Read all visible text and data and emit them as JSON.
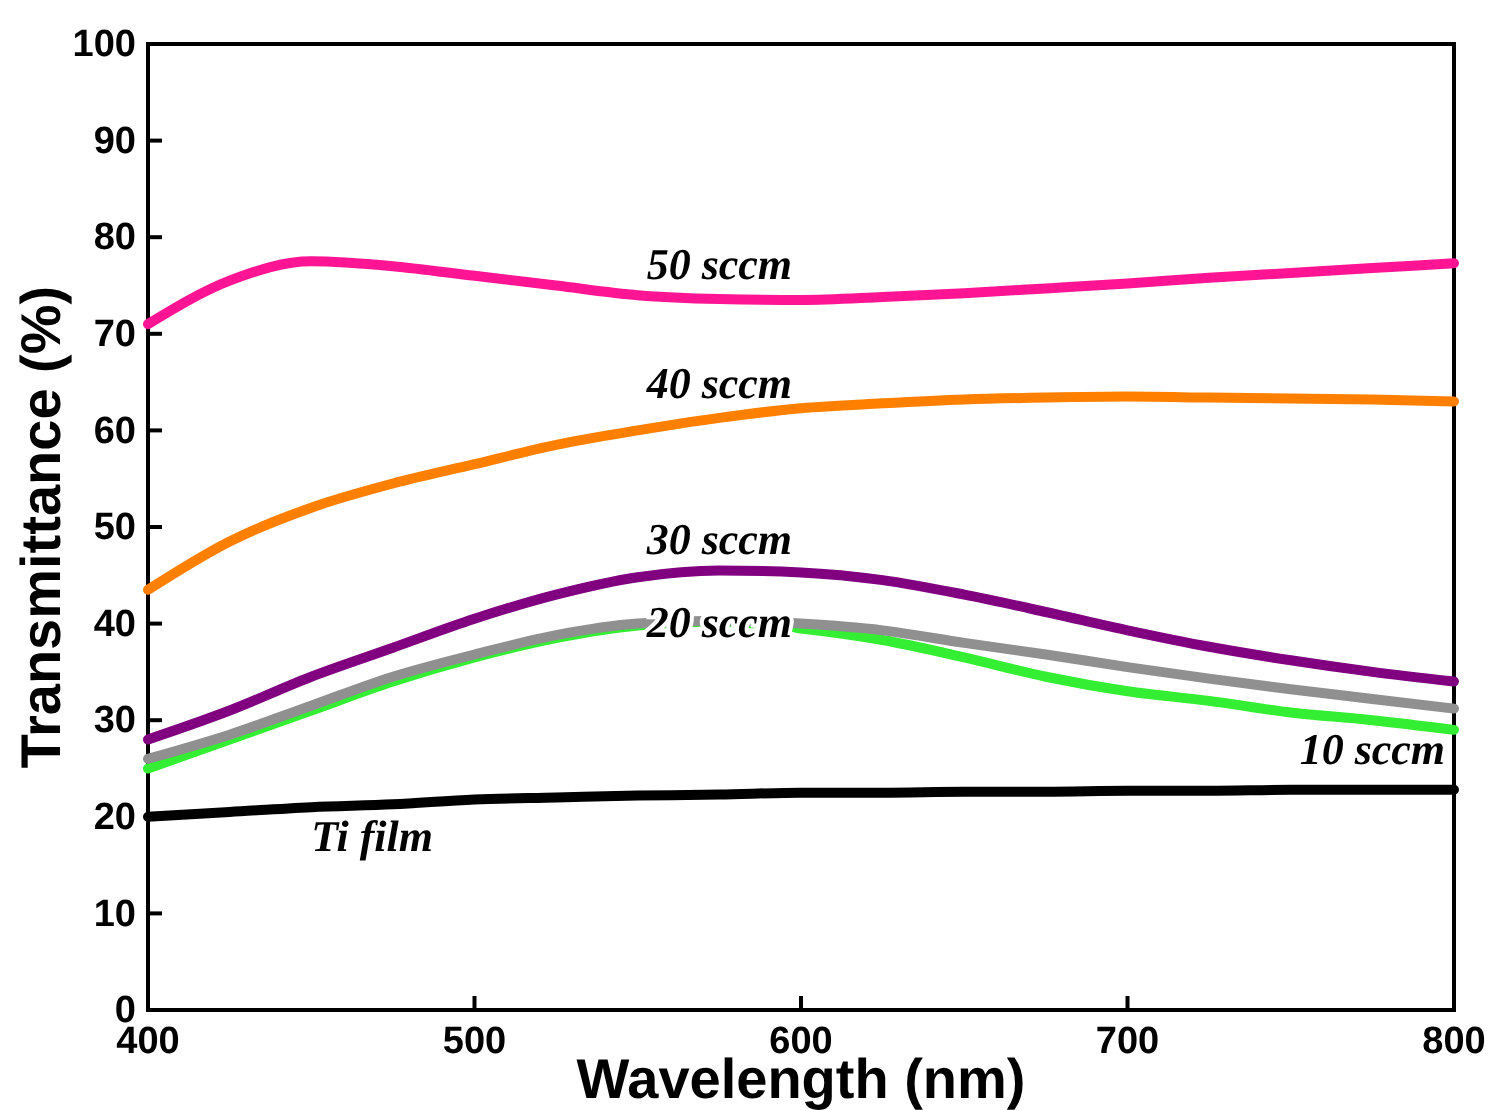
{
  "chart_data": {
    "type": "line",
    "xlabel": "Wavelength (nm)",
    "ylabel": "Transmittance (%)",
    "xlim": [
      400,
      800
    ],
    "ylim": [
      0,
      100
    ],
    "xticks": [
      400,
      500,
      600,
      700,
      800
    ],
    "yticks": [
      0,
      10,
      20,
      30,
      40,
      50,
      60,
      70,
      80,
      90,
      100
    ],
    "marker": "none",
    "line_style": "solid",
    "x": [
      400,
      425,
      450,
      475,
      500,
      525,
      550,
      575,
      600,
      625,
      650,
      675,
      700,
      725,
      750,
      775,
      800
    ],
    "series": [
      {
        "name": "Ti film",
        "color": "#000000",
        "values": [
          20,
          20.5,
          21,
          21.3,
          21.8,
          22,
          22.2,
          22.3,
          22.5,
          22.5,
          22.6,
          22.6,
          22.7,
          22.7,
          22.8,
          22.8,
          22.8
        ]
      },
      {
        "name": "10 sccm",
        "color": "#33ee33",
        "values": [
          25,
          28,
          31,
          34,
          36.5,
          38.5,
          39.8,
          40.2,
          39.5,
          38.3,
          36.5,
          34.5,
          33,
          32,
          30.8,
          30,
          29
        ]
      },
      {
        "name": "20 sccm",
        "color": "#909090",
        "values": [
          26,
          28.5,
          31.5,
          34.5,
          36.8,
          38.8,
          40,
          40.3,
          40,
          39.3,
          38,
          36.8,
          35.5,
          34.3,
          33.2,
          32.2,
          31.2
        ]
      },
      {
        "name": "30 sccm",
        "color": "#800080",
        "values": [
          28,
          31,
          34.5,
          37.5,
          40.5,
          43,
          44.8,
          45.5,
          45.3,
          44.5,
          43,
          41.2,
          39.3,
          37.6,
          36.2,
          35,
          34
        ]
      },
      {
        "name": "40 sccm",
        "color": "#ff8000",
        "values": [
          43.5,
          48.5,
          52,
          54.5,
          56.5,
          58.5,
          60,
          61.3,
          62.3,
          62.8,
          63.2,
          63.4,
          63.5,
          63.4,
          63.3,
          63.2,
          63
        ]
      },
      {
        "name": "50 sccm",
        "color": "#ff1493",
        "values": [
          71,
          75.5,
          77.5,
          77,
          76,
          75,
          74,
          73.6,
          73.5,
          73.8,
          74.2,
          74.7,
          75.2,
          75.8,
          76.3,
          76.8,
          77.3
        ]
      }
    ]
  }
}
